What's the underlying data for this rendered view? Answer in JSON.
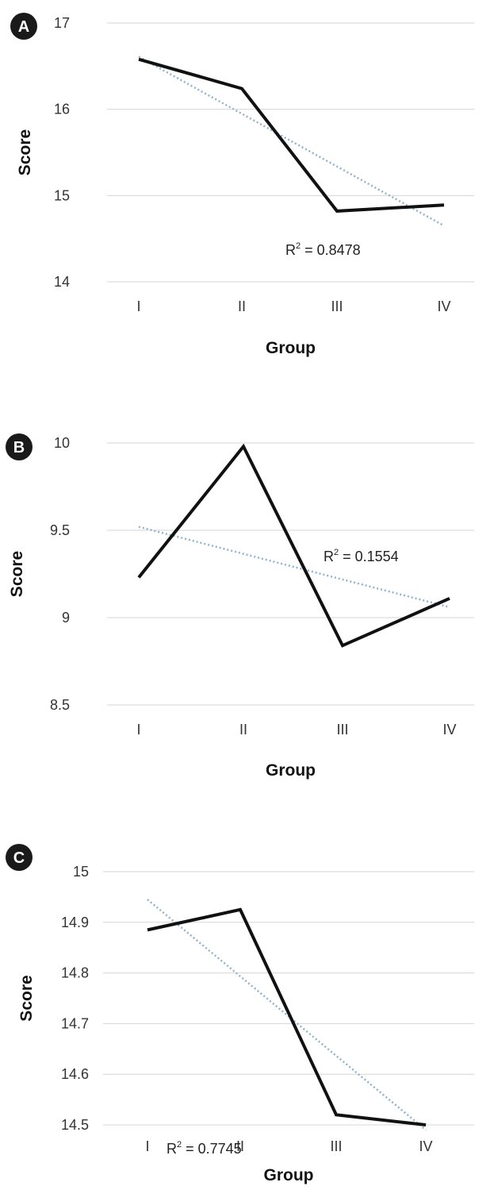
{
  "chart_data": [
    {
      "type": "line",
      "panel_label": "A",
      "categories": [
        "I",
        "II",
        "III",
        "IV"
      ],
      "series": [
        {
          "values": [
            16.58,
            16.24,
            14.82,
            14.89
          ],
          "color": "#111111"
        }
      ],
      "trendline": {
        "values": [
          16.61,
          15.95,
          15.3,
          14.65
        ],
        "color": "#8fb3cc",
        "style": "dotted"
      },
      "annotation": {
        "text": "R = 0.8478",
        "superscript": "2"
      },
      "xlabel": "Group",
      "ylabel": "Score",
      "ylim": [
        14,
        17
      ],
      "yticks": [
        17,
        16,
        15,
        14
      ],
      "grid": true
    },
    {
      "type": "line",
      "panel_label": "B",
      "categories": [
        "I",
        "II",
        "III",
        "IV"
      ],
      "series": [
        {
          "values": [
            9.23,
            9.98,
            8.84,
            9.11
          ],
          "color": "#111111"
        }
      ],
      "trendline": {
        "values": [
          9.52,
          9.37,
          9.22,
          9.06
        ],
        "color": "#8fb3cc",
        "style": "dotted"
      },
      "annotation": {
        "text": "R = 0.1554",
        "superscript": "2"
      },
      "xlabel": "Group",
      "ylabel": "Score",
      "ylim": [
        8.5,
        10
      ],
      "yticks": [
        10,
        9.5,
        9,
        8.5
      ],
      "grid": true
    },
    {
      "type": "line",
      "panel_label": "C",
      "categories": [
        "I",
        "II",
        "III",
        "IV"
      ],
      "series": [
        {
          "values": [
            14.885,
            14.925,
            14.52,
            14.5
          ],
          "color": "#111111"
        }
      ],
      "trendline": {
        "values": [
          14.945,
          14.79,
          14.64,
          14.49
        ],
        "color": "#8fb3cc",
        "style": "dotted"
      },
      "annotation": {
        "text": "R = 0.7745",
        "superscript": "2"
      },
      "xlabel": "Group",
      "ylabel": "Score",
      "ylim": [
        14.5,
        15
      ],
      "yticks": [
        15,
        14.9,
        14.8,
        14.7,
        14.6,
        14.5
      ],
      "grid": true
    }
  ],
  "colors": {
    "grid": "#d6d6d6",
    "badge": "#1a1a1a",
    "text": "#333333"
  }
}
